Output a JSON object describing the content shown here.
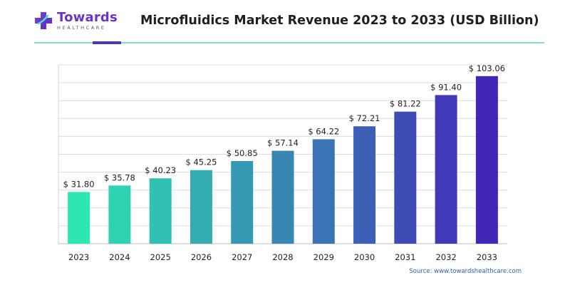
{
  "logo": {
    "name": "Towards",
    "subtitle": "HEALTHCARE"
  },
  "colors": {
    "brand_purple": "#6a34c4",
    "accent_teal": "#7fe0c4",
    "bar_start": "#2ee6b0",
    "bar_end": "#4326b8",
    "source_blue": "#2a5fb0"
  },
  "chart_data": {
    "type": "bar",
    "title": "Microfluidics Market Revenue 2023 to 2033 (USD Billion)",
    "categories": [
      "2023",
      "2024",
      "2025",
      "2026",
      "2027",
      "2028",
      "2029",
      "2030",
      "2031",
      "2032",
      "2033"
    ],
    "values": [
      31.8,
      35.78,
      40.23,
      45.25,
      50.85,
      57.14,
      64.22,
      72.21,
      81.22,
      91.4,
      103.06
    ],
    "value_labels": [
      "$ 31.80",
      "$ 35.78",
      "$ 40.23",
      "$ 45.25",
      "$ 50.85",
      "$ 57.14",
      "$ 64.22",
      "$ 72.21",
      "$ 81.22",
      "$ 91.40",
      "$ 103.06"
    ],
    "xlabel": "",
    "ylabel": "",
    "ylim": [
      0,
      110
    ],
    "grid": true
  },
  "source": "Source: www.towardshealthcare.com"
}
